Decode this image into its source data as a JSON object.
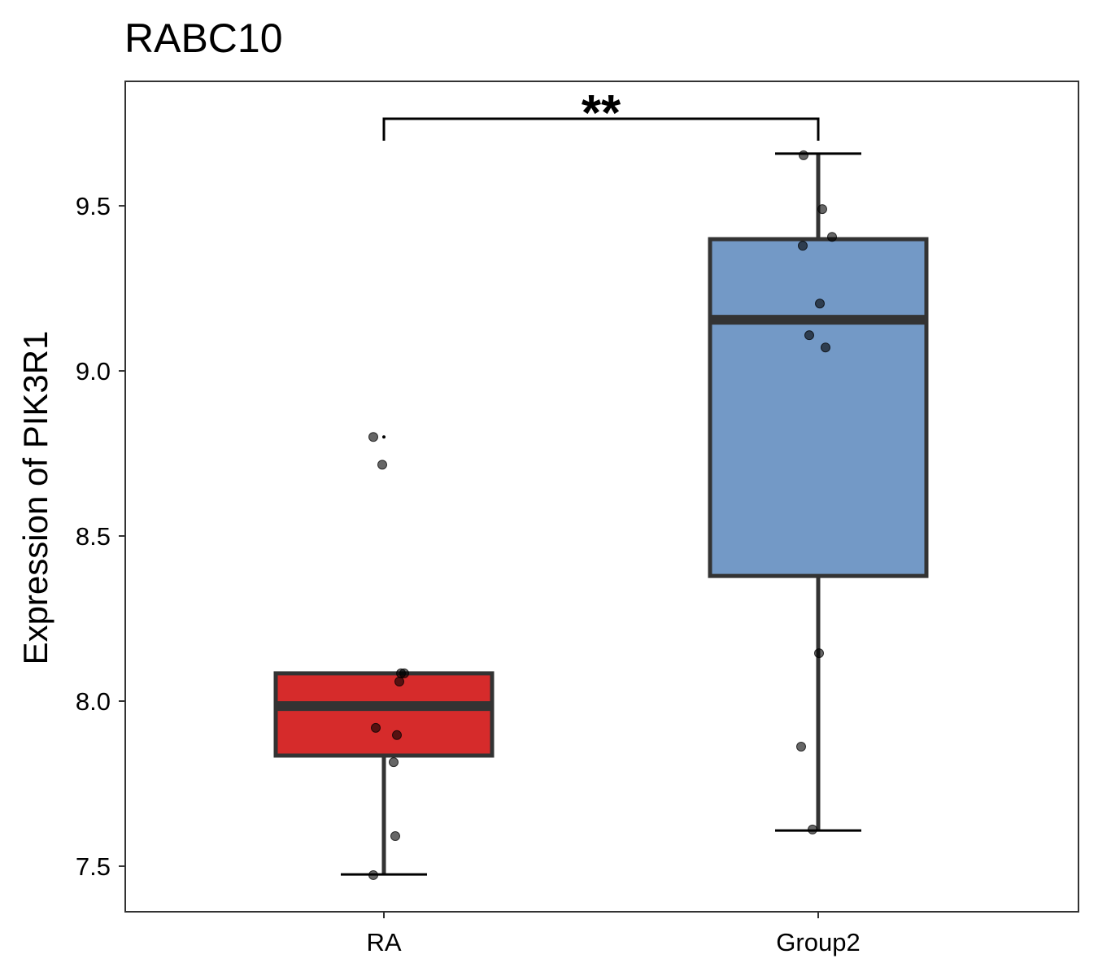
{
  "chart_data": {
    "type": "box",
    "title": "RABC10",
    "xlabel": "",
    "ylabel": "Expression of PIK3R1",
    "ylim": [
      7.362,
      9.877
    ],
    "yticks": [
      7.5,
      8.0,
      8.5,
      9.0,
      9.5
    ],
    "ytick_labels": [
      "7.5",
      "8.0",
      "8.5",
      "9.0",
      "9.5"
    ],
    "categories": [
      "RA",
      "Group2"
    ],
    "grid": false,
    "legend": "none",
    "colors": {
      "RA": "#D62B2B",
      "Group2": "#7399C6",
      "outline": "#333333"
    },
    "boxes": [
      {
        "name": "RA",
        "whisker_low": 7.475,
        "q1": 7.835,
        "median": 7.985,
        "q3": 8.084,
        "whisker_high": 8.084,
        "outliers": [
          8.8
        ]
      },
      {
        "name": "Group2",
        "whisker_low": 7.608,
        "q1": 8.379,
        "median": 9.155,
        "q3": 9.399,
        "whisker_high": 9.658,
        "outliers": []
      }
    ],
    "points": [
      {
        "group": "RA",
        "values": [
          8.8,
          8.716,
          8.084,
          8.084,
          8.059,
          7.919,
          7.897,
          7.815,
          7.591,
          7.473
        ],
        "jitter": [
          -13,
          -2,
          21,
          25,
          19,
          -10,
          16,
          12,
          14,
          -13
        ]
      },
      {
        "group": "Group2",
        "values": [
          9.653,
          9.49,
          9.406,
          9.379,
          9.204,
          9.108,
          9.071,
          8.145,
          7.862,
          7.611
        ],
        "jitter": [
          -18,
          5,
          17,
          -19,
          2,
          -11,
          9,
          1,
          -21,
          -7
        ]
      }
    ],
    "annotations": [
      {
        "between": [
          "RA",
          "Group2"
        ],
        "label": "**"
      }
    ]
  }
}
